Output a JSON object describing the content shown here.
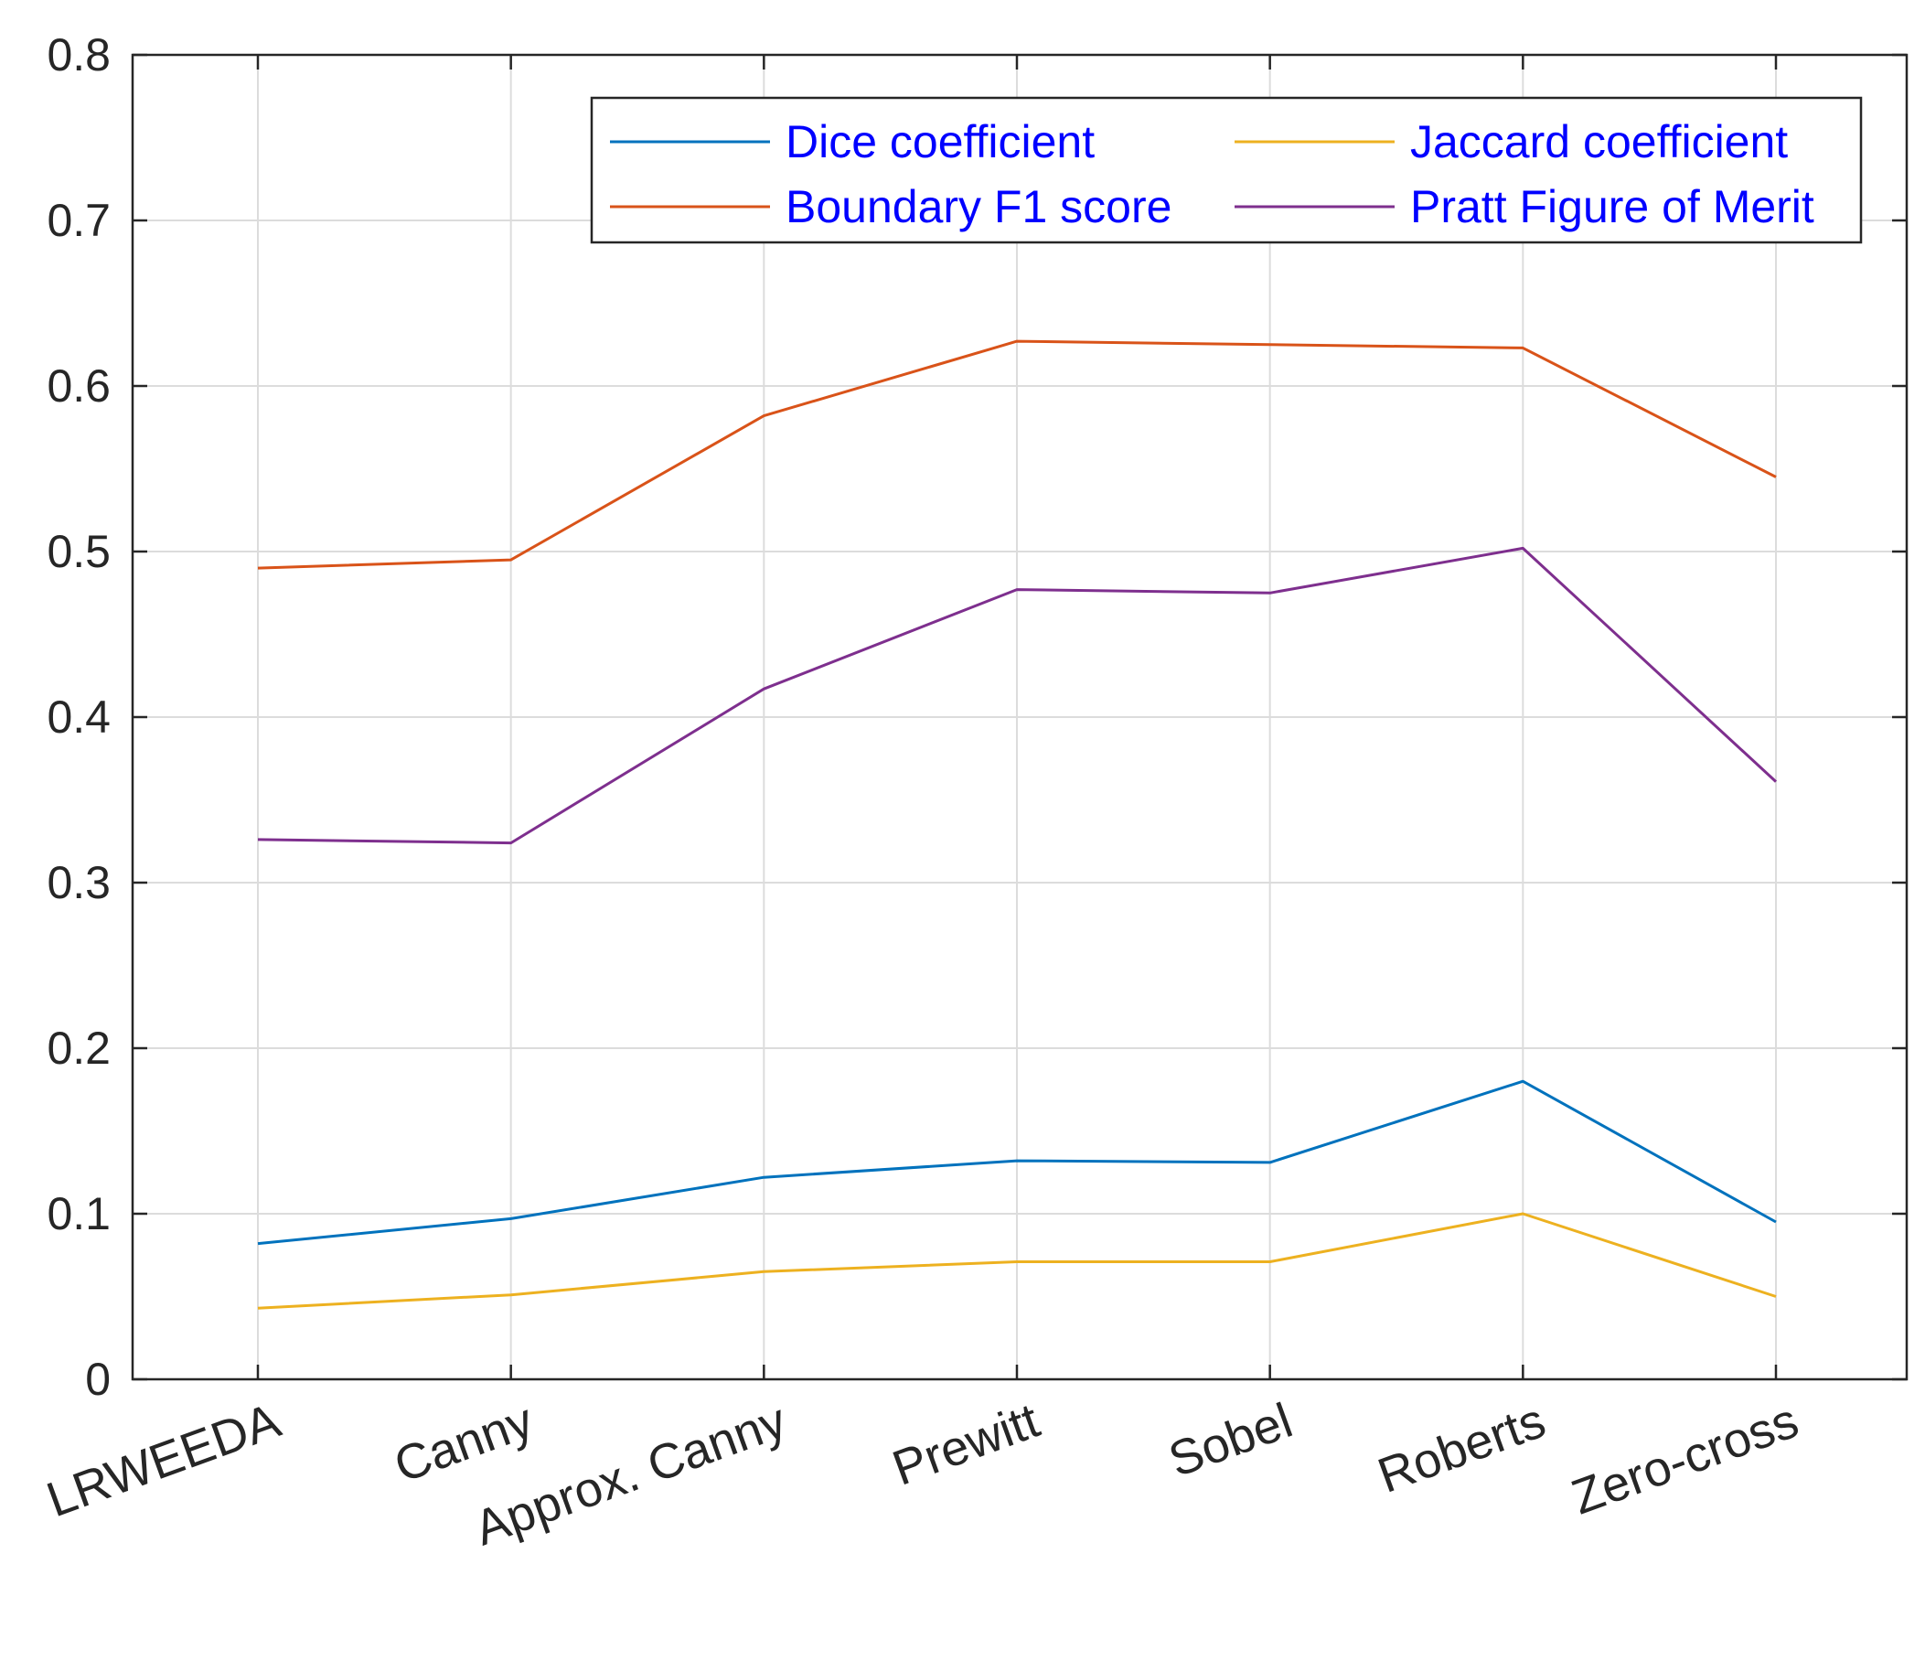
{
  "chart_data": {
    "type": "line",
    "title": "",
    "xlabel": "",
    "ylabel": "",
    "categories": [
      "LRWEEDA",
      "Canny",
      "Approx. Canny",
      "Prewitt",
      "Sobel",
      "Roberts",
      "Zero-cross"
    ],
    "ylim": [
      0,
      0.8
    ],
    "yticks": [
      "0",
      "0.1",
      "0.2",
      "0.3",
      "0.4",
      "0.5",
      "0.6",
      "0.7",
      "0.8"
    ],
    "grid": true,
    "legend_position": "top-right",
    "series": [
      {
        "name": "Dice coefficient",
        "color": "#0072BD",
        "values": [
          0.082,
          0.097,
          0.122,
          0.132,
          0.131,
          0.18,
          0.095
        ]
      },
      {
        "name": "Jaccard coefficient",
        "color": "#EDB120",
        "values": [
          0.043,
          0.051,
          0.065,
          0.071,
          0.071,
          0.1,
          0.05
        ]
      },
      {
        "name": "Boundary F1 score",
        "color": "#D95319",
        "values": [
          0.49,
          0.495,
          0.582,
          0.627,
          0.625,
          0.623,
          0.545
        ]
      },
      {
        "name": "Pratt Figure of Merit",
        "color": "#7E2F8E",
        "values": [
          0.326,
          0.324,
          0.417,
          0.477,
          0.475,
          0.502,
          0.361
        ]
      }
    ],
    "legend_text_color": "#0000FF"
  }
}
